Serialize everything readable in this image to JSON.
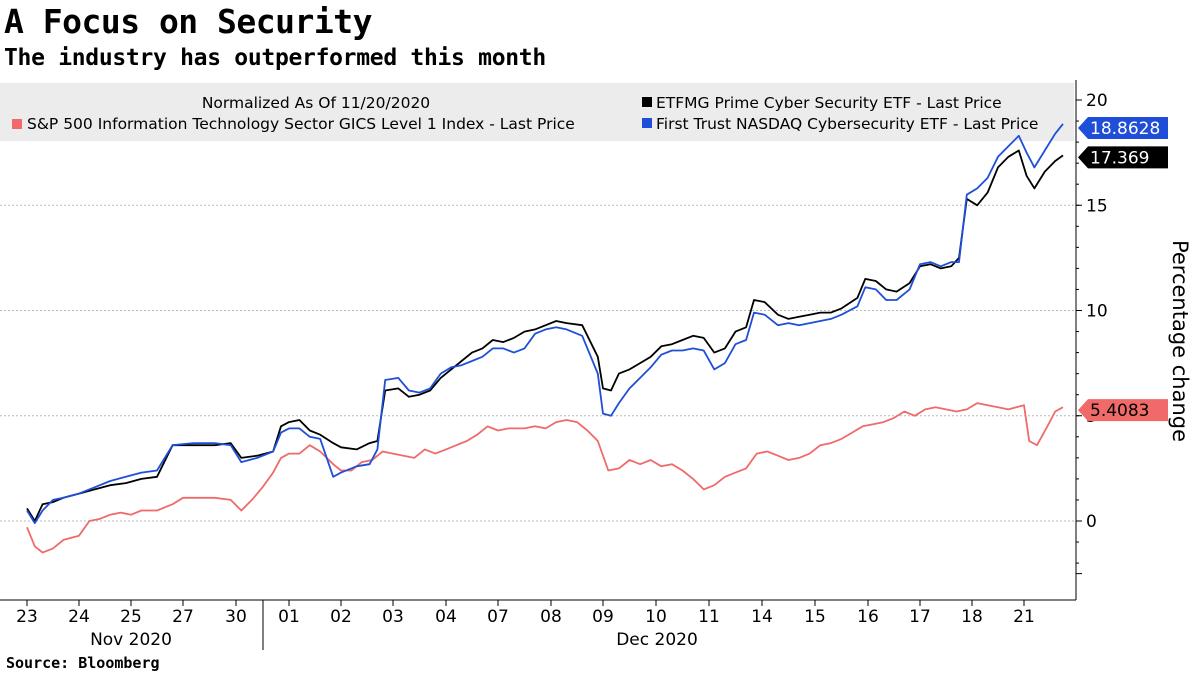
{
  "header": {
    "title": "A Focus on Security",
    "subtitle": "The industry has outperformed this month"
  },
  "footer": {
    "source": "Source: Bloomberg"
  },
  "chart_data": {
    "type": "line",
    "legend": {
      "placement": "top",
      "note": "Normalized As Of 11/20/2020",
      "entries": [
        {
          "label": "ETFMG Prime Cyber Security ETF - Last Price",
          "color": "#000000"
        },
        {
          "label": "S&P 500 Information Technology Sector GICS Level 1 Index - Last Price",
          "color": "#f06a6a"
        },
        {
          "label": "First Trust NASDAQ Cybersecurity ETF - Last Price",
          "color": "#1f4fd8"
        }
      ]
    },
    "ylabel": "Percentage change",
    "ylim": [
      -2.5,
      20.8
    ],
    "yticks": [
      0,
      5,
      10,
      15,
      20
    ],
    "grid": true,
    "x_tick_labels": [
      "23",
      "24",
      "25",
      "27",
      "30",
      "01",
      "02",
      "03",
      "04",
      "07",
      "08",
      "09",
      "10",
      "11",
      "14",
      "15",
      "16",
      "17",
      "18",
      "21"
    ],
    "x_month_labels": [
      "Nov 2020",
      "Dec 2020"
    ],
    "series": [
      {
        "name": "ETFMG Prime Cyber Security ETF - Last Price",
        "color": "#000000",
        "last_value_label": "17.369",
        "points": [
          [
            0,
            0.6
          ],
          [
            0.15,
            0.0
          ],
          [
            0.3,
            0.8
          ],
          [
            0.5,
            0.9
          ],
          [
            0.7,
            1.1
          ],
          [
            1.0,
            1.3
          ],
          [
            1.3,
            1.5
          ],
          [
            1.6,
            1.7
          ],
          [
            1.9,
            1.8
          ],
          [
            2.2,
            2.0
          ],
          [
            2.5,
            2.1
          ],
          [
            2.8,
            3.6
          ],
          [
            3.2,
            3.6
          ],
          [
            3.6,
            3.6
          ],
          [
            3.9,
            3.7
          ],
          [
            4.1,
            3.0
          ],
          [
            4.4,
            3.1
          ],
          [
            4.7,
            3.3
          ],
          [
            4.85,
            4.5
          ],
          [
            5.0,
            4.7
          ],
          [
            5.2,
            4.8
          ],
          [
            5.4,
            4.3
          ],
          [
            5.6,
            4.1
          ],
          [
            5.85,
            3.7
          ],
          [
            6.0,
            3.5
          ],
          [
            6.3,
            3.4
          ],
          [
            6.55,
            3.7
          ],
          [
            6.7,
            3.8
          ],
          [
            6.85,
            6.2
          ],
          [
            7.1,
            6.3
          ],
          [
            7.3,
            5.9
          ],
          [
            7.5,
            6.0
          ],
          [
            7.7,
            6.2
          ],
          [
            7.9,
            6.8
          ],
          [
            8.1,
            7.2
          ],
          [
            8.3,
            7.6
          ],
          [
            8.5,
            8.0
          ],
          [
            8.7,
            8.2
          ],
          [
            8.9,
            8.6
          ],
          [
            9.1,
            8.5
          ],
          [
            9.3,
            8.7
          ],
          [
            9.5,
            9.0
          ],
          [
            9.7,
            9.1
          ],
          [
            9.9,
            9.3
          ],
          [
            10.1,
            9.5
          ],
          [
            10.3,
            9.4
          ],
          [
            10.6,
            9.3
          ],
          [
            10.9,
            7.8
          ],
          [
            11.0,
            6.3
          ],
          [
            11.15,
            6.2
          ],
          [
            11.3,
            7.0
          ],
          [
            11.5,
            7.2
          ],
          [
            11.7,
            7.5
          ],
          [
            11.9,
            7.8
          ],
          [
            12.1,
            8.3
          ],
          [
            12.3,
            8.4
          ],
          [
            12.5,
            8.6
          ],
          [
            12.7,
            8.8
          ],
          [
            12.9,
            8.7
          ],
          [
            13.1,
            8.0
          ],
          [
            13.3,
            8.2
          ],
          [
            13.5,
            9.0
          ],
          [
            13.7,
            9.2
          ],
          [
            13.85,
            10.5
          ],
          [
            14.05,
            10.4
          ],
          [
            14.3,
            9.8
          ],
          [
            14.5,
            9.6
          ],
          [
            14.7,
            9.7
          ],
          [
            14.9,
            9.8
          ],
          [
            15.1,
            9.9
          ],
          [
            15.3,
            9.9
          ],
          [
            15.5,
            10.1
          ],
          [
            15.8,
            10.6
          ],
          [
            15.95,
            11.5
          ],
          [
            16.15,
            11.4
          ],
          [
            16.35,
            11.0
          ],
          [
            16.55,
            10.9
          ],
          [
            16.8,
            11.3
          ],
          [
            17.0,
            12.1
          ],
          [
            17.2,
            12.2
          ],
          [
            17.4,
            12.0
          ],
          [
            17.6,
            12.1
          ],
          [
            17.75,
            12.5
          ],
          [
            17.9,
            15.3
          ],
          [
            18.1,
            15.0
          ],
          [
            18.3,
            15.6
          ],
          [
            18.5,
            16.8
          ],
          [
            18.7,
            17.3
          ],
          [
            18.9,
            17.6
          ],
          [
            19.05,
            16.4
          ],
          [
            19.2,
            15.8
          ],
          [
            19.4,
            16.6
          ],
          [
            19.6,
            17.1
          ],
          [
            19.75,
            17.369
          ]
        ]
      },
      {
        "name": "First Trust NASDAQ Cybersecurity ETF - Last Price",
        "color": "#1f4fd8",
        "last_value_label": "18.8628",
        "points": [
          [
            0,
            0.5
          ],
          [
            0.15,
            -0.1
          ],
          [
            0.3,
            0.5
          ],
          [
            0.5,
            1.0
          ],
          [
            0.7,
            1.1
          ],
          [
            1.0,
            1.3
          ],
          [
            1.3,
            1.6
          ],
          [
            1.6,
            1.9
          ],
          [
            1.9,
            2.1
          ],
          [
            2.2,
            2.3
          ],
          [
            2.5,
            2.4
          ],
          [
            2.8,
            3.6
          ],
          [
            3.2,
            3.7
          ],
          [
            3.6,
            3.7
          ],
          [
            3.9,
            3.6
          ],
          [
            4.1,
            2.8
          ],
          [
            4.4,
            3.0
          ],
          [
            4.7,
            3.3
          ],
          [
            4.85,
            4.2
          ],
          [
            5.0,
            4.4
          ],
          [
            5.2,
            4.4
          ],
          [
            5.4,
            4.0
          ],
          [
            5.6,
            3.9
          ],
          [
            5.85,
            2.1
          ],
          [
            6.0,
            2.3
          ],
          [
            6.3,
            2.6
          ],
          [
            6.55,
            2.7
          ],
          [
            6.7,
            3.4
          ],
          [
            6.85,
            6.7
          ],
          [
            7.1,
            6.8
          ],
          [
            7.3,
            6.2
          ],
          [
            7.5,
            6.1
          ],
          [
            7.7,
            6.3
          ],
          [
            7.9,
            7.0
          ],
          [
            8.1,
            7.3
          ],
          [
            8.3,
            7.4
          ],
          [
            8.5,
            7.6
          ],
          [
            8.7,
            7.8
          ],
          [
            8.9,
            8.2
          ],
          [
            9.1,
            8.2
          ],
          [
            9.3,
            8.0
          ],
          [
            9.5,
            8.2
          ],
          [
            9.7,
            8.9
          ],
          [
            9.9,
            9.1
          ],
          [
            10.1,
            9.2
          ],
          [
            10.3,
            9.1
          ],
          [
            10.6,
            8.8
          ],
          [
            10.9,
            7.0
          ],
          [
            11.0,
            5.1
          ],
          [
            11.15,
            5.0
          ],
          [
            11.3,
            5.6
          ],
          [
            11.5,
            6.3
          ],
          [
            11.7,
            6.8
          ],
          [
            11.9,
            7.3
          ],
          [
            12.1,
            7.9
          ],
          [
            12.3,
            8.1
          ],
          [
            12.5,
            8.1
          ],
          [
            12.7,
            8.2
          ],
          [
            12.9,
            8.1
          ],
          [
            13.1,
            7.2
          ],
          [
            13.3,
            7.5
          ],
          [
            13.5,
            8.4
          ],
          [
            13.7,
            8.6
          ],
          [
            13.85,
            9.9
          ],
          [
            14.05,
            9.8
          ],
          [
            14.3,
            9.3
          ],
          [
            14.5,
            9.4
          ],
          [
            14.7,
            9.3
          ],
          [
            14.9,
            9.4
          ],
          [
            15.1,
            9.5
          ],
          [
            15.3,
            9.6
          ],
          [
            15.5,
            9.8
          ],
          [
            15.8,
            10.2
          ],
          [
            15.95,
            11.1
          ],
          [
            16.15,
            11.0
          ],
          [
            16.35,
            10.5
          ],
          [
            16.55,
            10.5
          ],
          [
            16.8,
            11.0
          ],
          [
            17.0,
            12.2
          ],
          [
            17.2,
            12.3
          ],
          [
            17.4,
            12.1
          ],
          [
            17.6,
            12.3
          ],
          [
            17.75,
            12.3
          ],
          [
            17.9,
            15.5
          ],
          [
            18.1,
            15.8
          ],
          [
            18.3,
            16.3
          ],
          [
            18.5,
            17.3
          ],
          [
            18.7,
            17.8
          ],
          [
            18.9,
            18.3
          ],
          [
            19.05,
            17.5
          ],
          [
            19.2,
            16.8
          ],
          [
            19.4,
            17.6
          ],
          [
            19.6,
            18.4
          ],
          [
            19.75,
            18.8628
          ]
        ]
      },
      {
        "name": "S&P 500 Information Technology Sector GICS Level 1 Index - Last Price",
        "color": "#f06a6a",
        "last_value_label": "5.4083",
        "points": [
          [
            0,
            -0.3
          ],
          [
            0.15,
            -1.2
          ],
          [
            0.3,
            -1.5
          ],
          [
            0.5,
            -1.3
          ],
          [
            0.7,
            -0.9
          ],
          [
            1.0,
            -0.7
          ],
          [
            1.2,
            0.0
          ],
          [
            1.4,
            0.1
          ],
          [
            1.6,
            0.3
          ],
          [
            1.8,
            0.4
          ],
          [
            2.0,
            0.3
          ],
          [
            2.2,
            0.5
          ],
          [
            2.5,
            0.5
          ],
          [
            2.8,
            0.8
          ],
          [
            3.0,
            1.1
          ],
          [
            3.3,
            1.1
          ],
          [
            3.6,
            1.1
          ],
          [
            3.9,
            1.0
          ],
          [
            4.1,
            0.5
          ],
          [
            4.3,
            1.0
          ],
          [
            4.5,
            1.6
          ],
          [
            4.7,
            2.3
          ],
          [
            4.85,
            3.0
          ],
          [
            5.0,
            3.2
          ],
          [
            5.2,
            3.2
          ],
          [
            5.4,
            3.6
          ],
          [
            5.6,
            3.3
          ],
          [
            5.85,
            2.7
          ],
          [
            6.0,
            2.4
          ],
          [
            6.2,
            2.4
          ],
          [
            6.4,
            2.8
          ],
          [
            6.6,
            2.9
          ],
          [
            6.8,
            3.3
          ],
          [
            7.0,
            3.2
          ],
          [
            7.2,
            3.1
          ],
          [
            7.4,
            3.0
          ],
          [
            7.6,
            3.4
          ],
          [
            7.8,
            3.2
          ],
          [
            8.0,
            3.4
          ],
          [
            8.2,
            3.6
          ],
          [
            8.4,
            3.8
          ],
          [
            8.6,
            4.1
          ],
          [
            8.8,
            4.5
          ],
          [
            9.0,
            4.3
          ],
          [
            9.2,
            4.4
          ],
          [
            9.5,
            4.4
          ],
          [
            9.7,
            4.5
          ],
          [
            9.9,
            4.4
          ],
          [
            10.1,
            4.7
          ],
          [
            10.3,
            4.8
          ],
          [
            10.5,
            4.7
          ],
          [
            10.7,
            4.3
          ],
          [
            10.9,
            3.8
          ],
          [
            11.1,
            2.4
          ],
          [
            11.3,
            2.5
          ],
          [
            11.5,
            2.9
          ],
          [
            11.7,
            2.7
          ],
          [
            11.9,
            2.9
          ],
          [
            12.1,
            2.6
          ],
          [
            12.3,
            2.7
          ],
          [
            12.5,
            2.4
          ],
          [
            12.7,
            2.0
          ],
          [
            12.9,
            1.5
          ],
          [
            13.1,
            1.7
          ],
          [
            13.3,
            2.1
          ],
          [
            13.5,
            2.3
          ],
          [
            13.7,
            2.5
          ],
          [
            13.9,
            3.2
          ],
          [
            14.1,
            3.3
          ],
          [
            14.3,
            3.1
          ],
          [
            14.5,
            2.9
          ],
          [
            14.7,
            3.0
          ],
          [
            14.9,
            3.2
          ],
          [
            15.1,
            3.6
          ],
          [
            15.3,
            3.7
          ],
          [
            15.5,
            3.9
          ],
          [
            15.7,
            4.2
          ],
          [
            15.9,
            4.5
          ],
          [
            16.1,
            4.6
          ],
          [
            16.3,
            4.7
          ],
          [
            16.5,
            4.9
          ],
          [
            16.7,
            5.2
          ],
          [
            16.9,
            5.0
          ],
          [
            17.1,
            5.3
          ],
          [
            17.3,
            5.4
          ],
          [
            17.5,
            5.3
          ],
          [
            17.7,
            5.2
          ],
          [
            17.9,
            5.3
          ],
          [
            18.1,
            5.6
          ],
          [
            18.3,
            5.5
          ],
          [
            18.5,
            5.4
          ],
          [
            18.7,
            5.3
          ],
          [
            18.85,
            5.4
          ],
          [
            19.0,
            5.5
          ],
          [
            19.1,
            3.8
          ],
          [
            19.25,
            3.6
          ],
          [
            19.45,
            4.5
          ],
          [
            19.6,
            5.2
          ],
          [
            19.75,
            5.4083
          ]
        ]
      }
    ]
  }
}
